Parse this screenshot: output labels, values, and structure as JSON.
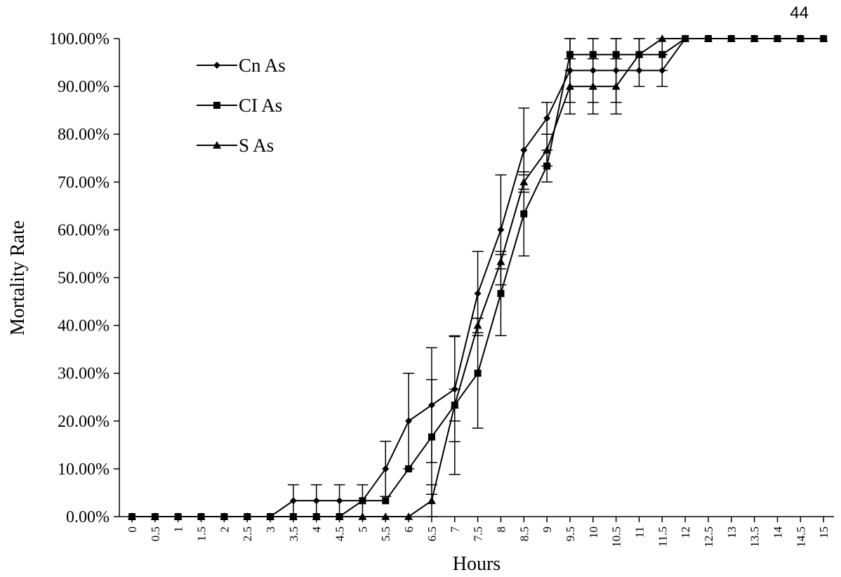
{
  "page_number": "44",
  "chart_data": {
    "type": "line",
    "title": "",
    "xlabel": "Hours",
    "ylabel": "Mortality Rate",
    "x": [
      0,
      0.5,
      1,
      1.5,
      2,
      2.5,
      3,
      3.5,
      4,
      4.5,
      5,
      5.5,
      6,
      6.5,
      7,
      7.5,
      8,
      8.5,
      9,
      9.5,
      10,
      10.5,
      11,
      11.5,
      12,
      12.5,
      13,
      13.5,
      14,
      14.5,
      15
    ],
    "x_tick_labels": [
      "0",
      "0.5",
      "1",
      "1.5",
      "2",
      "2.5",
      "3",
      "3.5",
      "4",
      "4.5",
      "5",
      "5.5",
      "6",
      "6.5",
      "7",
      "7.5",
      "8",
      "8.5",
      "9",
      "9.5",
      "10",
      "10.5",
      "11",
      "11.5",
      "12",
      "12.5",
      "13",
      "13.5",
      "14",
      "14.5",
      "15"
    ],
    "y_tick_labels": [
      "0.00%",
      "10.00%",
      "20.00%",
      "30.00%",
      "40.00%",
      "50.00%",
      "60.00%",
      "70.00%",
      "80.00%",
      "90.00%",
      "100.00%"
    ],
    "ylim": [
      0,
      100
    ],
    "legend_position": "top-left",
    "grid": false,
    "series": [
      {
        "name": "Cn As",
        "marker": "diamond",
        "values": [
          0,
          0,
          0,
          0,
          0,
          0,
          0,
          3.33,
          3.33,
          3.33,
          3.33,
          10,
          20,
          23.33,
          26.67,
          46.67,
          60,
          76.67,
          83.33,
          93.33,
          93.33,
          93.33,
          93.33,
          93.33,
          100,
          100,
          100,
          100,
          100,
          100,
          100
        ],
        "errors": [
          0,
          0,
          0,
          0,
          0,
          0,
          0,
          3.33,
          3.33,
          3.33,
          3.33,
          5.77,
          10,
          12,
          11,
          8.8,
          11.5,
          8.8,
          3.33,
          6.67,
          6.67,
          6.67,
          3.33,
          3.33,
          0,
          0,
          0,
          0,
          0,
          0,
          0
        ]
      },
      {
        "name": "CI As",
        "marker": "square",
        "values": [
          0,
          0,
          0,
          0,
          0,
          0,
          0,
          0,
          0,
          0,
          3.33,
          3.33,
          10,
          16.67,
          23.33,
          30,
          46.67,
          63.33,
          73.33,
          96.67,
          96.67,
          96.67,
          96.67,
          96.67,
          100,
          100,
          100,
          100,
          100,
          100,
          100
        ],
        "errors": [
          0,
          0,
          0,
          0,
          0,
          0,
          0,
          0,
          0,
          0,
          0,
          0,
          0,
          12,
          14.5,
          11.5,
          8.8,
          8.8,
          3.33,
          3.33,
          3.33,
          3.33,
          3.33,
          3.33,
          0,
          0,
          0,
          0,
          0,
          0,
          0
        ]
      },
      {
        "name": "S As",
        "marker": "triangle",
        "values": [
          0,
          0,
          0,
          0,
          0,
          0,
          0,
          0,
          0,
          0,
          0,
          0,
          0,
          3.33,
          23.33,
          40,
          53.33,
          70,
          76.67,
          90,
          90,
          90,
          96.67,
          100,
          100,
          100,
          100,
          100,
          100,
          100,
          100
        ],
        "errors": [
          0,
          0,
          0,
          0,
          0,
          0,
          0,
          0,
          0,
          0,
          0,
          0,
          0,
          3.33,
          3.33,
          1.5,
          1.5,
          1.5,
          3.33,
          5.77,
          5.77,
          5.77,
          3.33,
          0,
          0,
          0,
          0,
          0,
          0,
          0,
          0
        ]
      }
    ]
  }
}
